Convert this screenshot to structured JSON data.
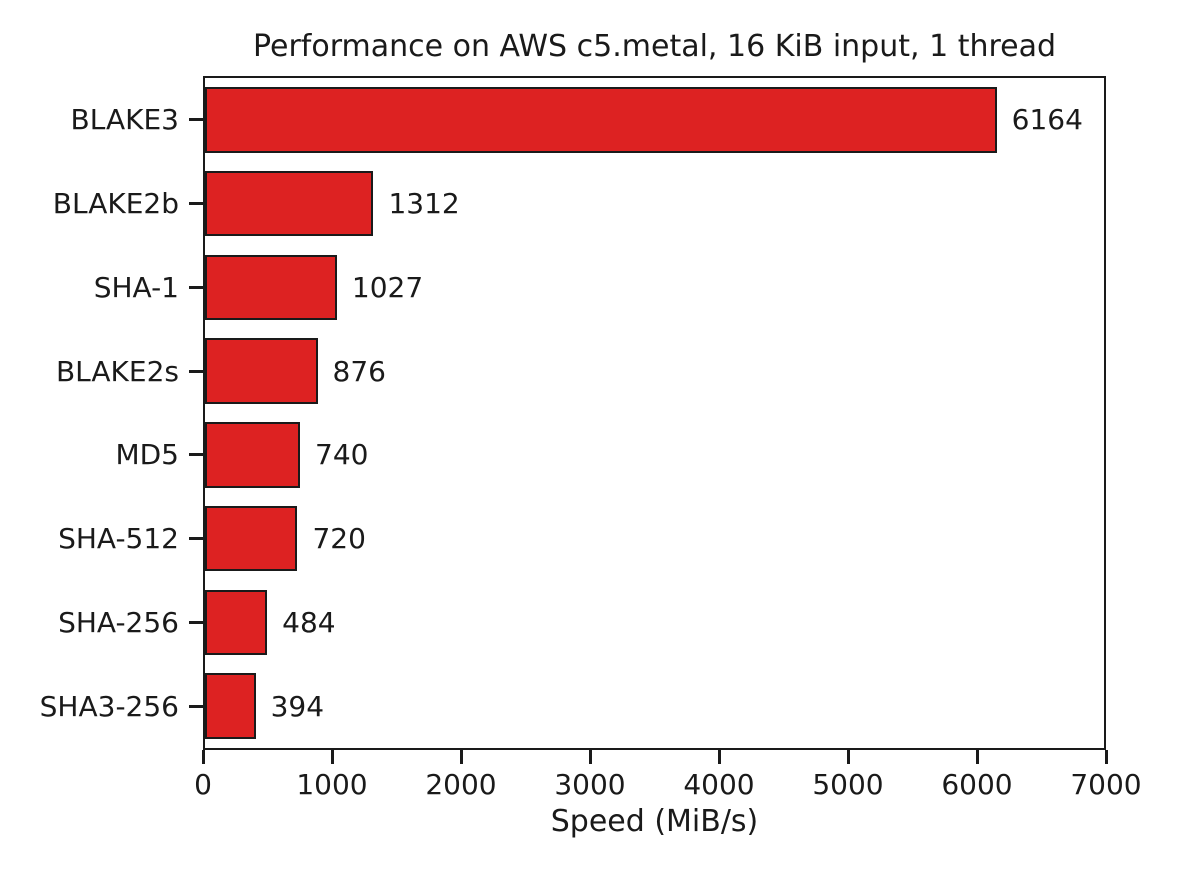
{
  "chart_data": {
    "type": "bar",
    "orientation": "horizontal",
    "title": "Performance on AWS c5.metal, 16 KiB input, 1 thread",
    "categories": [
      "BLAKE3",
      "BLAKE2b",
      "SHA-1",
      "BLAKE2s",
      "MD5",
      "SHA-512",
      "SHA-256",
      "SHA3-256"
    ],
    "values": [
      6164,
      1312,
      1027,
      876,
      740,
      720,
      484,
      394
    ],
    "value_labels": [
      "6164",
      "1312",
      "1027",
      "876",
      "740",
      "720",
      "484",
      "394"
    ],
    "xlabel": "Speed (MiB/s)",
    "ylabel": "",
    "xlim": [
      0,
      7000
    ],
    "xticks": [
      0,
      1000,
      2000,
      3000,
      4000,
      5000,
      6000,
      7000
    ],
    "xtick_labels": [
      "0",
      "1000",
      "2000",
      "3000",
      "4000",
      "5000",
      "6000",
      "7000"
    ],
    "grid": false,
    "legend_position": "none",
    "colors": {
      "bar_fill": "#dd2222",
      "bar_edge": "#1a1a1a",
      "axis": "#1a1a1a",
      "text": "#1a1a1a",
      "background": "#ffffff"
    }
  }
}
